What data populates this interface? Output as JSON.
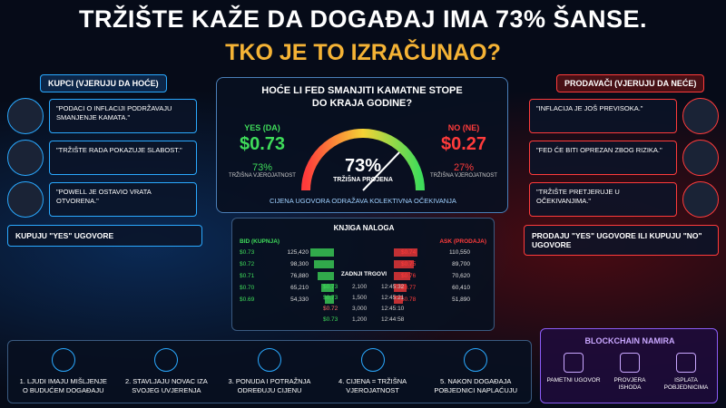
{
  "header": {
    "title": "TRŽIŠTE KAŽE DA DOGAĐAJ IMA 73% ŠANSE.",
    "subtitle": "TKO JE TO IZRAČUNAO?"
  },
  "buyers": {
    "title": "KUPCI (VJERUJU DA HOĆE)",
    "quotes": [
      "\"PODACI O INFLACIJI PODRŽAVAJU SMANJENJE KAMATA.\"",
      "\"TRŽIŠTE RADA POKAZUJE SLABOST.\"",
      "\"POWELL JE OSTAVIO VRATA OTVORENA.\""
    ],
    "action": "KUPUJU \"YES\" UGOVORE"
  },
  "market": {
    "question": "HOĆE LI FED SMANJITI KAMATNE STOPE DO KRAJA GODINE?",
    "yes": {
      "label": "YES (DA)",
      "price": "$0.73",
      "probability": "73%",
      "probability_label": "TRŽIŠNA VJEROJATNOST"
    },
    "gauge": {
      "value": "73%",
      "label": "TRŽIŠNA PROJENA"
    },
    "no": {
      "label": "NO (NE)",
      "price": "$0.27",
      "probability": "27%",
      "probability_label": "TRŽIŠNA VJEROJATNOST"
    },
    "note": "CIJENA UGOVORA ODRAŽAVA KOLEKTIVNA OČEKIVANJA"
  },
  "sellers": {
    "title": "PRODAVAČI (VJERUJU DA NEĆE)",
    "quotes": [
      "\"INFLACIJA JE JOŠ PREVISOKA.\"",
      "\"FED ĆE BITI OPREZAN ZBOG RIZIKA.\"",
      "\"TRŽIŠTE PRETJERUJE U OČEKIVANJIMA.\""
    ],
    "action": "PRODAJU \"YES\" UGOVORE ILI KUPUJU \"NO\" UGOVORE"
  },
  "order_book": {
    "title": "KNJIGA NALOGA",
    "bids": {
      "title": "BID (KUPNJA)",
      "rows": [
        [
          "$0.73",
          "125,420"
        ],
        [
          "$0.72",
          "98,300"
        ],
        [
          "$0.71",
          "76,880"
        ],
        [
          "$0.70",
          "65,210"
        ],
        [
          "$0.69",
          "54,330"
        ]
      ]
    },
    "asks": {
      "title": "ASK (PRODAJA)",
      "rows": [
        [
          "$0.74",
          "110,550"
        ],
        [
          "$0.75",
          "89,700"
        ],
        [
          "$0.76",
          "70,620"
        ],
        [
          "$0.77",
          "60,410"
        ],
        [
          "$0.78",
          "51,890"
        ]
      ]
    },
    "trades": {
      "title": "ZADNJI TRGOVI",
      "rows": [
        [
          "$0.73",
          "2,100",
          "12:45:32"
        ],
        [
          "$0.73",
          "1,500",
          "12:45:21"
        ],
        [
          "$0.72",
          "3,000",
          "12:45:10"
        ],
        [
          "$0.73",
          "1,200",
          "12:44:58"
        ]
      ]
    }
  },
  "steps": [
    "1. LJUDI IMAJU MIŠLJENJE O BUDUĆEM DOGAĐAJU",
    "2. STAVLJAJU NOVAC IZA SVOJEG UVJERENJA",
    "3. PONUDA I POTRAŽNJA ODREĐUJU CIJENU",
    "4. CIJENA = TRŽIŠNA VJEROJATNOST",
    "5. NAKON DOGAĐAJA POBJEDNICI NAPLAĆUJU"
  ],
  "blockchain": {
    "title": "BLOCKCHAIN NAMIRA",
    "steps": [
      "PAMETNI UGOVOR",
      "PROVJERA ISHODA",
      "ISPLATA POBJEDNICIMA"
    ]
  }
}
